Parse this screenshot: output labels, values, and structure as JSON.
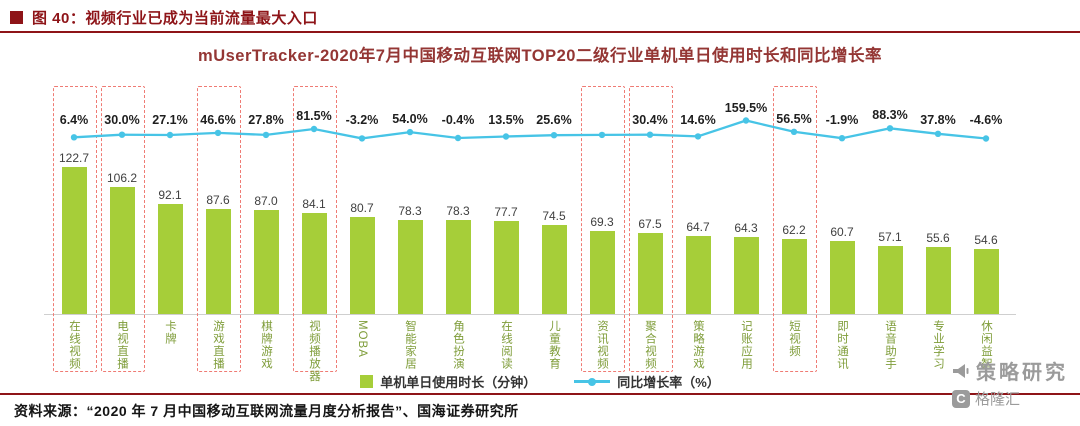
{
  "colors": {
    "accent_red": "#8e1418",
    "chart_title_red": "#943634",
    "bar_green": "#a6ce39",
    "line_cyan": "#47c4e6",
    "highlight_box_red": "#ef7b74",
    "category_label_green": "#7f9d3a",
    "watermark_gray": "#9b9b9b"
  },
  "header": {
    "figure_label": "图 40：视频行业已成为当前流量最大入口"
  },
  "chart_data": {
    "type": "bar",
    "title": "mUserTracker-2020年7月中国移动互联网TOP20二级行业单机单日使用时长和同比增长率",
    "categories": [
      "在线视频",
      "电视直播",
      "卡牌",
      "游戏直播",
      "棋牌游戏",
      "视频播放器",
      "MOBA",
      "智能家居",
      "角色扮演",
      "在线阅读",
      "儿童教育",
      "资讯视频",
      "聚合视频",
      "策略游戏",
      "记账应用",
      "短视频",
      "即时通讯",
      "语音助手",
      "专业学习",
      "休闲益智"
    ],
    "series": [
      {
        "name": "单机单日使用时长（分钟）",
        "type": "bar",
        "unit": "分钟",
        "values": [
          122.7,
          106.2,
          92.1,
          87.6,
          87.0,
          84.1,
          80.7,
          78.3,
          78.3,
          77.7,
          74.5,
          69.3,
          67.5,
          64.7,
          64.3,
          62.2,
          60.7,
          57.1,
          55.6,
          54.6
        ]
      },
      {
        "name": "同比增长率（%）",
        "type": "line",
        "unit": "%",
        "values": [
          6.4,
          30.0,
          27.1,
          46.6,
          27.8,
          81.5,
          -3.2,
          54.0,
          -0.4,
          13.5,
          25.6,
          28.0,
          30.4,
          14.6,
          159.5,
          56.5,
          -1.9,
          88.3,
          37.8,
          -4.6
        ],
        "labels": [
          "6.4%",
          "30.0%",
          "27.1%",
          "46.6%",
          "27.8%",
          "81.5%",
          "-3.2%",
          "54.0%",
          "-0.4%",
          "13.5%",
          "25.6%",
          "",
          "30.4%",
          "14.6%",
          "159.5%",
          "56.5%",
          "-1.9%",
          "88.3%",
          "37.8%",
          "-4.6%"
        ],
        "unlabeled_point_indexes": [
          11
        ]
      }
    ],
    "highlighted_category_indexes": [
      0,
      1,
      3,
      5,
      11,
      12,
      15
    ],
    "legend": [
      "单机单日使用时长（分钟）",
      "同比增长率（%）"
    ],
    "legend_position": "bottom",
    "grid": false
  },
  "watermark": {
    "brand": "策略研究",
    "site": "格隆汇",
    "logo_letter": "C"
  },
  "footer": {
    "source": "资料来源：“2020 年 7 月中国移动互联网流量月度分析报告”、国海证券研究所"
  }
}
